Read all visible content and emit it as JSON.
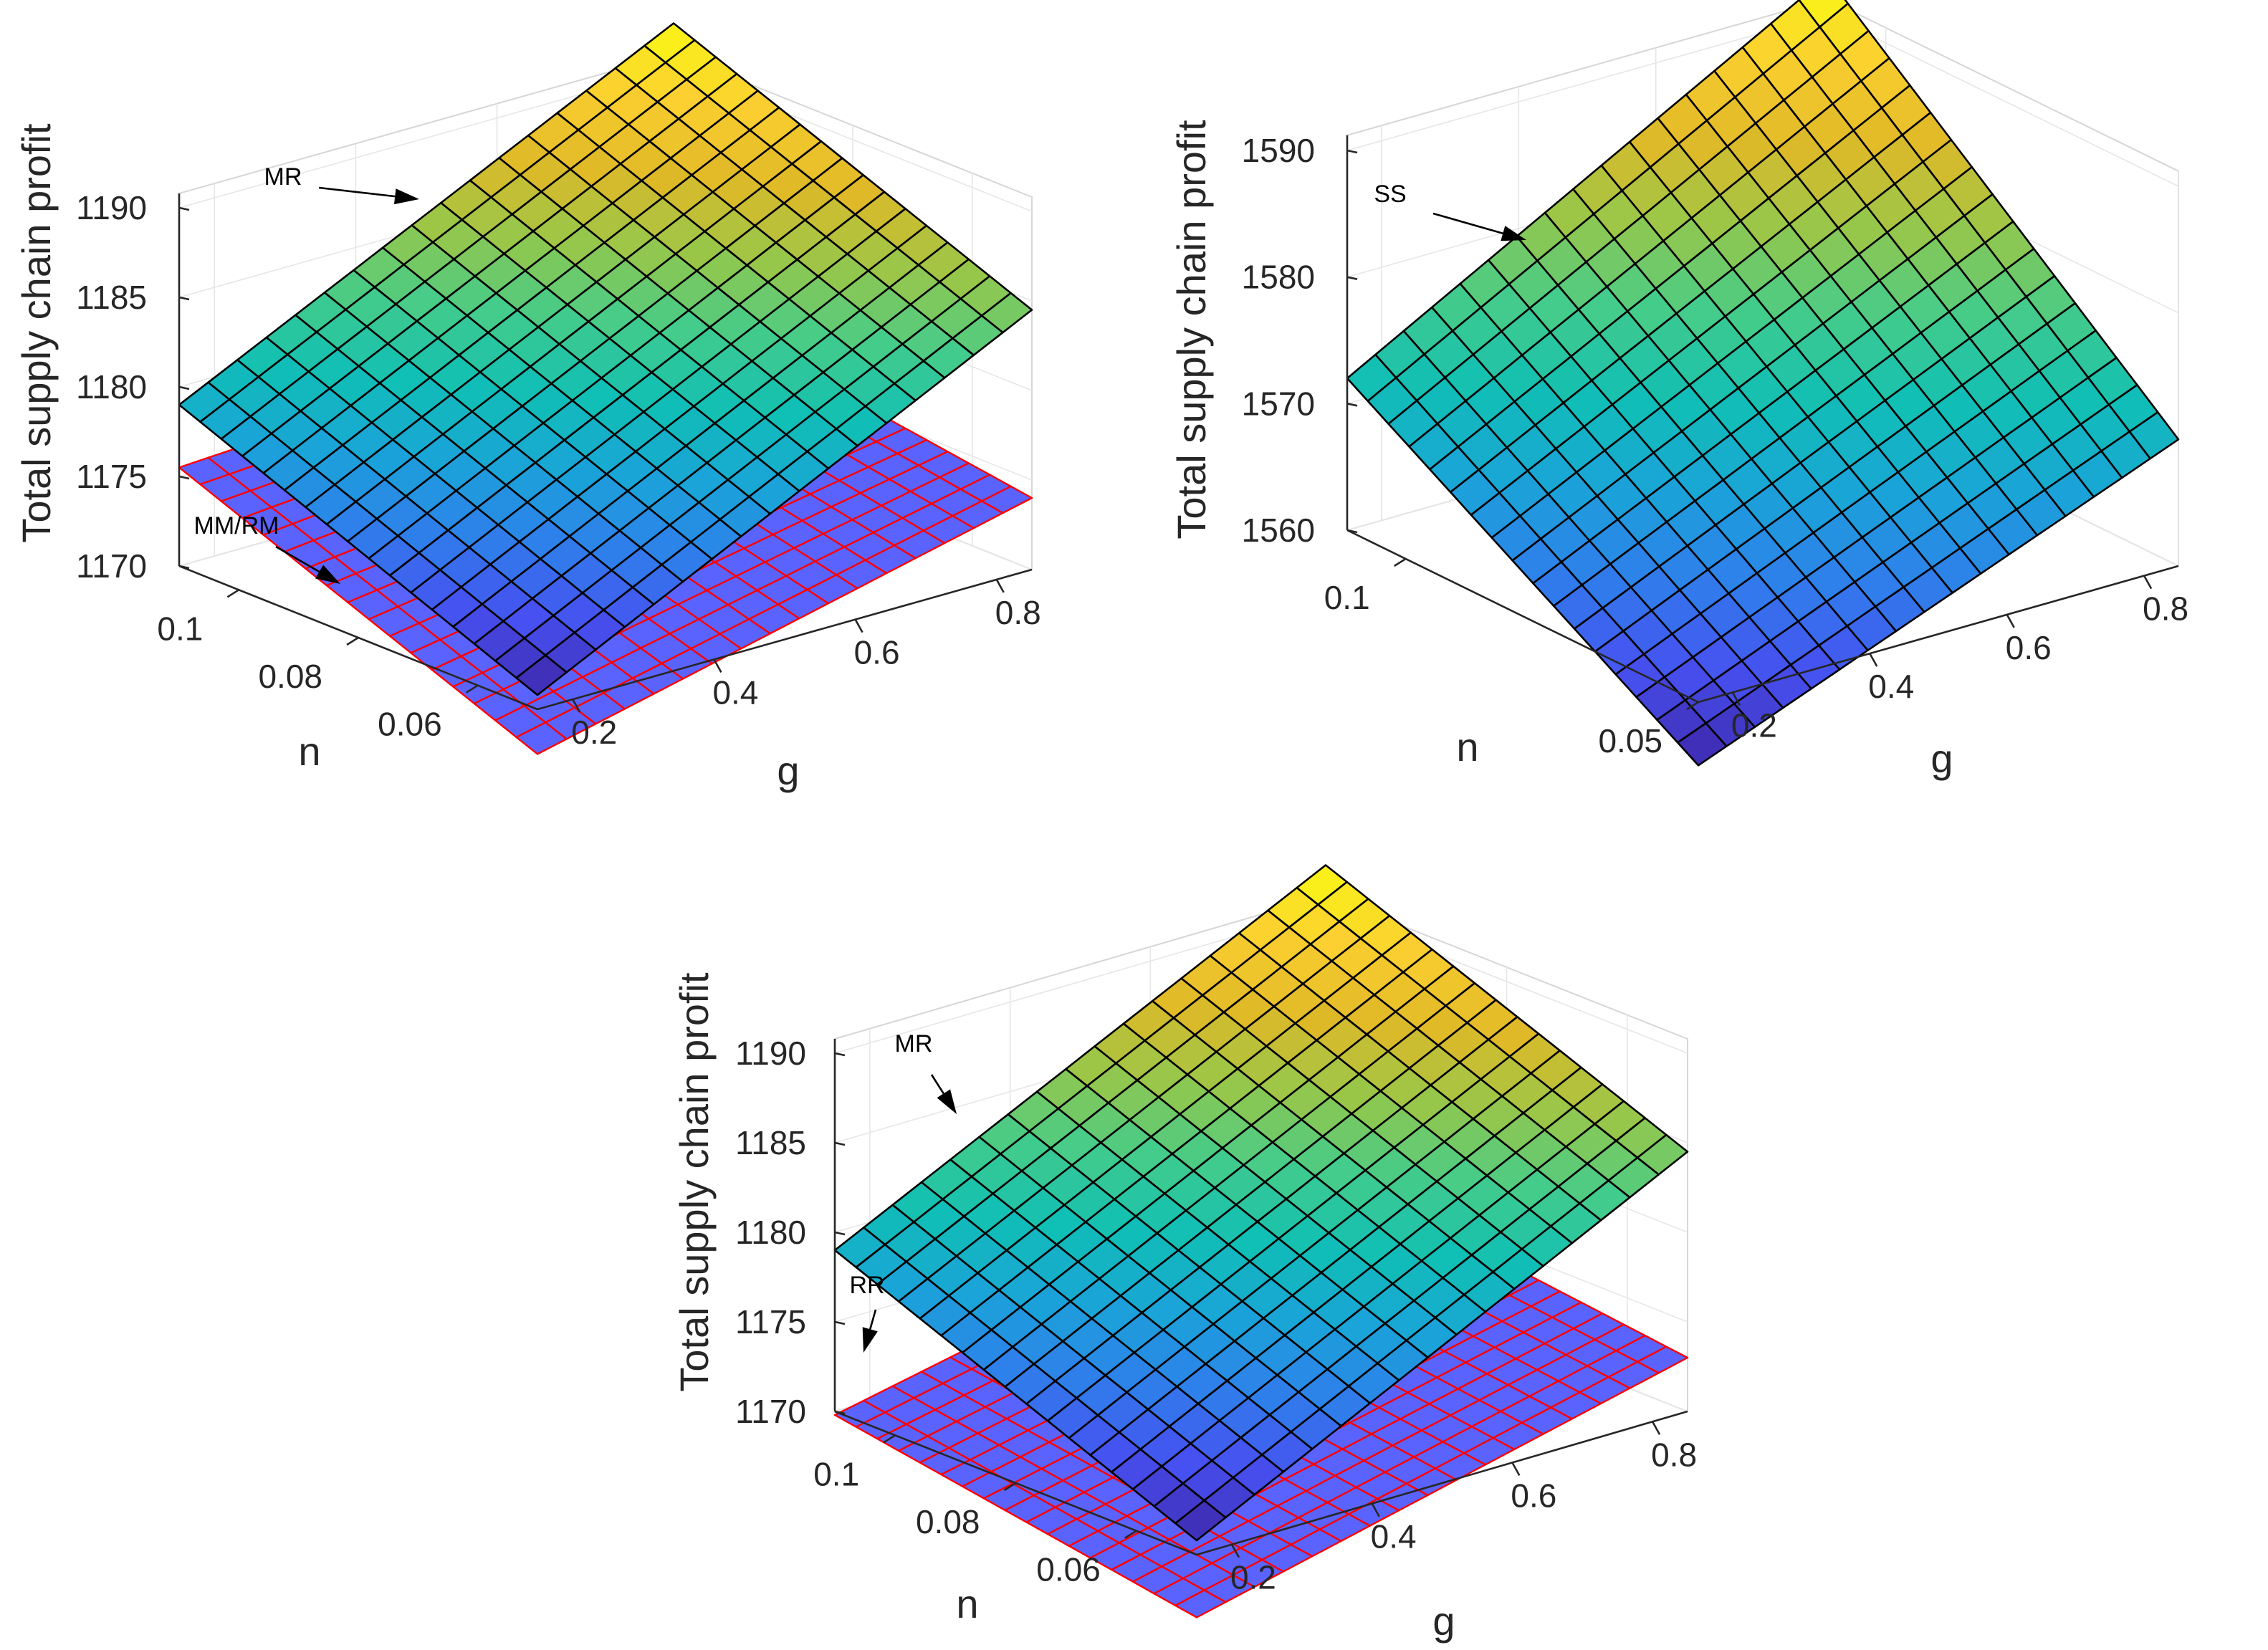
{
  "figure": {
    "colors": {
      "colormap": [
        "#3e26a8",
        "#4750f0",
        "#2f7feb",
        "#1aa4d8",
        "#10bfb5",
        "#44cc8a",
        "#97c74a",
        "#e0b927",
        "#fbcf30",
        "#f9fb14"
      ],
      "top_surface_edge": "#000000",
      "bottom_surface_edge": "#ff0000",
      "bottom_surface_fill": "#5b63ff",
      "axis_text": "#262626"
    }
  },
  "chart_data": [
    {
      "type": "surface3d",
      "zlabel": "Total supply chain profit",
      "xlabel": "g",
      "ylabel": "n",
      "xlim": [
        0.15,
        0.85
      ],
      "ylim": [
        0.05,
        0.11
      ],
      "zlim": [
        1170,
        1190
      ],
      "x_ticks": [
        "0.2",
        "0.4",
        "0.6",
        "0.8"
      ],
      "y_ticks": [
        "0.06",
        "0.08",
        "0.1"
      ],
      "z_ticks": [
        "1170",
        "1175",
        "1180",
        "1185",
        "1190"
      ],
      "grid": true,
      "series": [
        {
          "name": "MR",
          "surface": "top",
          "corners": {
            "g0_n0": 1170.8,
            "g1_n0": 1184.5,
            "g0_n1": 1179.0,
            "g1_n1": 1192.5
          }
        },
        {
          "name": "MM/RM",
          "surface": "bottom",
          "corners": {
            "g0_n0": 1167.5,
            "g1_n0": 1174.0,
            "g0_n1": 1175.5,
            "g1_n1": 1177.0
          }
        }
      ],
      "annotations": [
        {
          "text": "MR",
          "target": "MR"
        },
        {
          "text": "MM/RM",
          "target": "MM/RM"
        }
      ]
    },
    {
      "type": "surface3d",
      "zlabel": "Total supply chain profit",
      "xlabel": "g",
      "ylabel": "n",
      "xlim": [
        0.15,
        0.85
      ],
      "ylim": [
        0.05,
        0.11
      ],
      "zlim": [
        1560,
        1590
      ],
      "x_ticks": [
        "0.2",
        "0.4",
        "0.6",
        "0.8"
      ],
      "y_ticks": [
        "0.05",
        "0.1"
      ],
      "z_ticks": [
        "1560",
        "1570",
        "1580",
        "1590"
      ],
      "grid": true,
      "series": [
        {
          "name": "SS",
          "surface": "top",
          "corners": {
            "g0_n0": 1555.0,
            "g1_n0": 1570.0,
            "g0_n1": 1572.0,
            "g1_n1": 1593.0
          }
        }
      ],
      "annotations": [
        {
          "text": "SS",
          "target": "SS"
        }
      ]
    },
    {
      "type": "surface3d",
      "zlabel": "Total supply chain profit",
      "xlabel": "g",
      "ylabel": "n",
      "xlim": [
        0.15,
        0.85
      ],
      "ylim": [
        0.05,
        0.11
      ],
      "zlim": [
        1170,
        1190
      ],
      "x_ticks": [
        "0.2",
        "0.4",
        "0.6",
        "0.8"
      ],
      "y_ticks": [
        "0.06",
        "0.08",
        "0.1"
      ],
      "z_ticks": [
        "1170",
        "1175",
        "1180",
        "1185",
        "1190"
      ],
      "grid": true,
      "series": [
        {
          "name": "MR",
          "surface": "top",
          "corners": {
            "g0_n0": 1170.8,
            "g1_n0": 1184.5,
            "g0_n1": 1179.0,
            "g1_n1": 1192.5
          }
        },
        {
          "name": "RR",
          "surface": "bottom",
          "corners": {
            "g0_n0": 1166.5,
            "g1_n0": 1173.0,
            "g0_n1": 1169.8,
            "g1_n1": 1175.5
          }
        }
      ],
      "annotations": [
        {
          "text": "MR",
          "target": "MR"
        },
        {
          "text": "RR",
          "target": "RR"
        }
      ]
    }
  ]
}
